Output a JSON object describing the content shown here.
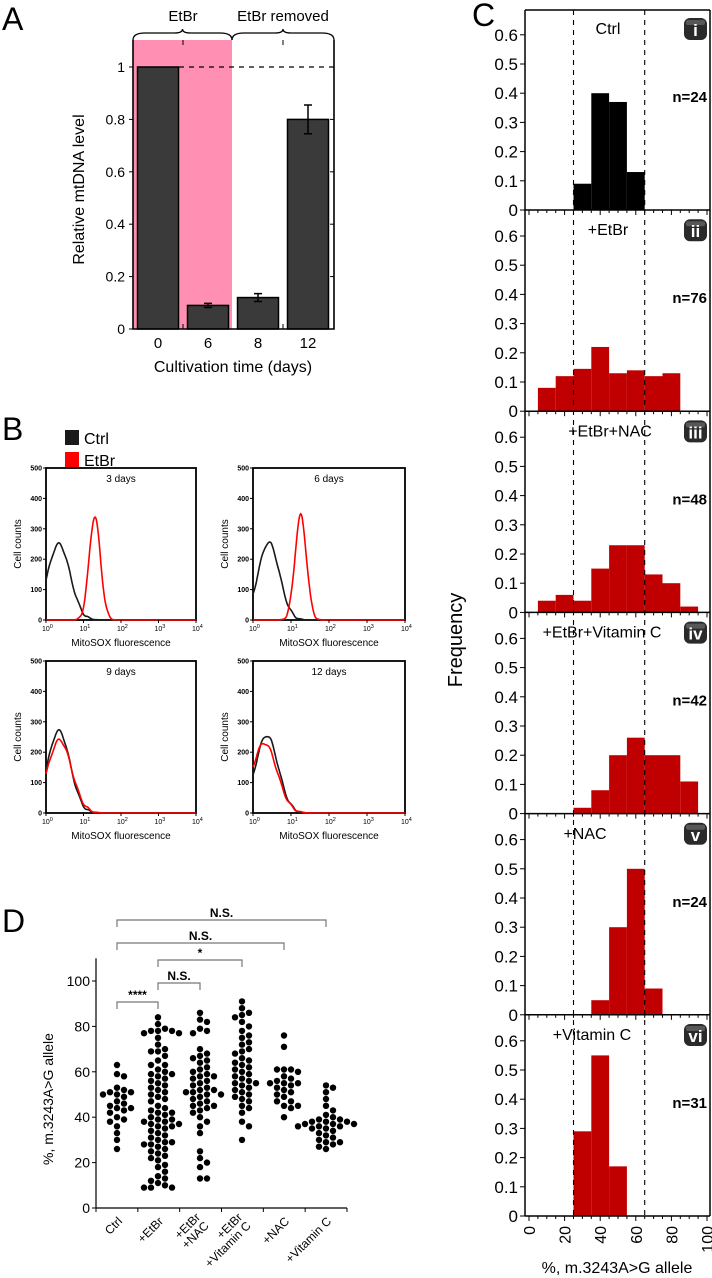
{
  "panel_labels": {
    "a": "A",
    "b": "B",
    "c": "C",
    "d": "D"
  },
  "chart_data": [
    {
      "id": "A",
      "type": "bar",
      "categories": [
        "0",
        "6",
        "8",
        "12"
      ],
      "values": [
        1.0,
        0.09,
        0.12,
        0.8
      ],
      "errors": [
        0,
        0.008,
        0.015,
        0.055
      ],
      "xlabel": "Cultivation time (days)",
      "ylabel": "Relative mtDNA level",
      "ylim": [
        0,
        1.1
      ],
      "yticks": [
        "0",
        "0.2",
        "0.4",
        "0.6",
        "0.8",
        "1"
      ],
      "reference_line": 1,
      "phases": [
        {
          "label": "EtBr",
          "color": "#FF8FB3"
        },
        {
          "label": "EtBr removed",
          "color": "#FFFFFF"
        }
      ],
      "bar_color": "#3A3A3A"
    },
    {
      "id": "B",
      "type": "line",
      "legend": [
        {
          "label": "Ctrl",
          "color": "#1A1A1A"
        },
        {
          "label": "EtBr",
          "color": "#FF0000"
        }
      ],
      "xlabel": "MitoSOX fluorescence",
      "ylabel": "Cell counts",
      "xscale": "log",
      "xlim": [
        1,
        10000
      ],
      "ylim": [
        0,
        500
      ],
      "yticks": [
        "0",
        "100",
        "200",
        "300",
        "400",
        "500"
      ],
      "xtick_base": "10",
      "xtick_exponents": [
        "0",
        "1",
        "2",
        "3",
        "4"
      ],
      "panels": [
        {
          "title": "3 days",
          "series": [
            {
              "name": "Ctrl",
              "peak": 2.2,
              "peak_count": 250,
              "spread_decades": 0.3
            },
            {
              "name": "EtBr",
              "peak": 20,
              "peak_count": 340,
              "spread_decades": 0.15
            }
          ]
        },
        {
          "title": "6 days",
          "series": [
            {
              "name": "Ctrl",
              "peak": 2.6,
              "peak_count": 255,
              "spread_decades": 0.28
            },
            {
              "name": "EtBr",
              "peak": 18,
              "peak_count": 345,
              "spread_decades": 0.15
            }
          ]
        },
        {
          "title": "9 days",
          "series": [
            {
              "name": "Ctrl",
              "peak": 2.2,
              "peak_count": 270,
              "spread_decades": 0.3
            },
            {
              "name": "EtBr",
              "peak": 2.3,
              "peak_count": 240,
              "spread_decades": 0.32
            }
          ]
        },
        {
          "title": "12 days",
          "series": [
            {
              "name": "Ctrl",
              "peak": 2.3,
              "peak_count": 255,
              "spread_decades": 0.3
            },
            {
              "name": "EtBr",
              "peak": 2.0,
              "peak_count": 230,
              "spread_decades": 0.33
            }
          ]
        }
      ]
    },
    {
      "id": "C",
      "type": "bar",
      "subtype": "histogram",
      "xlabel": "%, m.3243A>G allele",
      "ylabel": "Frequency",
      "xlim": [
        0,
        100
      ],
      "ylim": [
        0,
        0.65
      ],
      "yticks": [
        "0",
        "0.1",
        "0.2",
        "0.3",
        "0.4",
        "0.5",
        "0.6"
      ],
      "xticks": [
        "0",
        "20",
        "40",
        "60",
        "80",
        "100"
      ],
      "bin_width": 10,
      "reference_lines": [
        25,
        65
      ],
      "panels": [
        {
          "badge": "i",
          "label": "Ctrl",
          "n": "n=24",
          "color": "#000000",
          "bin_starts": [
            25,
            35,
            45,
            55
          ],
          "frequencies": [
            0.09,
            0.4,
            0.37,
            0.13
          ]
        },
        {
          "badge": "ii",
          "label": "+EtBr",
          "n": "n=76",
          "color": "#C00000",
          "bin_starts": [
            5,
            15,
            25,
            35,
            45,
            55,
            65,
            75
          ],
          "frequencies": [
            0.08,
            0.12,
            0.145,
            0.22,
            0.13,
            0.14,
            0.12,
            0.13
          ]
        },
        {
          "badge": "iii",
          "label": "+EtBr+NAC",
          "n": "n=48",
          "color": "#C00000",
          "bin_starts": [
            5,
            15,
            25,
            35,
            45,
            55,
            65,
            75,
            85
          ],
          "frequencies": [
            0.04,
            0.06,
            0.04,
            0.15,
            0.23,
            0.23,
            0.13,
            0.1,
            0.02
          ]
        },
        {
          "badge": "iv",
          "label": "+EtBr+Vitamin C",
          "n": "n=42",
          "color": "#C00000",
          "bin_starts": [
            25,
            35,
            45,
            55,
            65,
            75,
            85
          ],
          "frequencies": [
            0.02,
            0.08,
            0.2,
            0.26,
            0.2,
            0.2,
            0.11
          ]
        },
        {
          "badge": "v",
          "label": "+NAC",
          "n": "n=24",
          "color": "#C00000",
          "bin_starts": [
            35,
            45,
            55,
            65
          ],
          "frequencies": [
            0.05,
            0.3,
            0.5,
            0.09
          ]
        },
        {
          "badge": "vi",
          "label": "+Vitamin C",
          "n": "n=31",
          "color": "#C00000",
          "bin_starts": [
            25,
            35,
            45
          ],
          "frequencies": [
            0.29,
            0.55,
            0.17
          ]
        }
      ]
    },
    {
      "id": "D",
      "type": "scatter",
      "ylabel": "%, m.3243A>G allele",
      "ylim": [
        0,
        110
      ],
      "yticks": [
        "0",
        "20",
        "40",
        "60",
        "80",
        "100"
      ],
      "categories": [
        [
          "Ctrl"
        ],
        [
          "+EtBr"
        ],
        [
          "+EtBr",
          "+NAC"
        ],
        [
          "+EtBr",
          "+Vitamin C"
        ],
        [
          "+NAC"
        ],
        [
          "+Vitamin C"
        ]
      ],
      "values": [
        [
          63,
          59,
          58,
          53,
          52,
          51,
          51,
          50,
          50,
          49,
          47,
          46,
          45,
          44,
          44,
          43,
          42,
          40,
          39,
          38,
          36,
          33,
          30,
          26
        ],
        [
          84,
          81,
          79,
          78,
          78,
          78,
          77,
          77,
          75,
          72,
          70,
          69,
          69,
          67,
          65,
          63,
          63,
          61,
          60,
          59,
          59,
          58,
          57,
          56,
          55,
          54,
          53,
          52,
          51,
          50,
          49,
          48,
          47,
          45,
          44,
          43,
          42,
          42,
          41,
          40,
          39,
          39,
          38,
          38,
          37,
          37,
          36,
          36,
          35,
          34,
          33,
          32,
          31,
          30,
          29,
          29,
          28,
          28,
          27,
          26,
          25,
          24,
          23,
          22,
          21,
          19,
          18,
          16,
          14,
          13,
          12,
          11,
          10,
          9,
          9,
          9
        ],
        [
          86,
          83,
          82,
          79,
          78,
          77,
          70,
          68,
          67,
          66,
          65,
          64,
          62,
          61,
          60,
          59,
          58,
          58,
          57,
          56,
          55,
          54,
          53,
          52,
          52,
          51,
          51,
          50,
          50,
          49,
          48,
          47,
          46,
          45,
          45,
          44,
          43,
          42,
          40,
          38,
          36,
          33,
          25,
          22,
          20,
          18,
          13,
          13
        ],
        [
          91,
          88,
          86,
          85,
          84,
          82,
          80,
          78,
          76,
          75,
          73,
          72,
          70,
          69,
          68,
          66,
          65,
          64,
          63,
          62,
          61,
          60,
          59,
          58,
          57,
          56,
          55,
          55,
          54,
          53,
          52,
          51,
          50,
          49,
          48,
          47,
          45,
          44,
          42,
          38,
          36,
          30
        ],
        [
          76,
          71,
          61,
          61,
          61,
          60,
          58,
          57,
          56,
          55,
          55,
          55,
          54,
          53,
          52,
          51,
          50,
          49,
          47,
          47,
          45,
          45,
          44,
          40
        ],
        [
          54,
          53,
          51,
          48,
          45,
          43,
          41,
          40,
          39,
          39,
          38,
          38,
          38,
          37,
          37,
          37,
          36,
          36,
          36,
          35,
          35,
          34,
          33,
          32,
          31,
          30,
          29,
          29,
          28,
          27,
          26
        ]
      ],
      "comparisons": [
        {
          "from": 0,
          "to": 5,
          "label": "N.S."
        },
        {
          "from": 0,
          "to": 4,
          "label": "N.S."
        },
        {
          "from": 1,
          "to": 3,
          "label": "*"
        },
        {
          "from": 1,
          "to": 2,
          "label": "N.S."
        },
        {
          "from": 0,
          "to": 1,
          "label": "****"
        }
      ],
      "point_color": "#000000"
    }
  ]
}
